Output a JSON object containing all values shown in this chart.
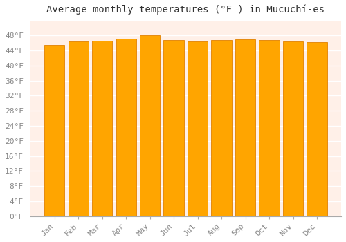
{
  "title": "Average monthly temperatures (°F ) in Mucuchí-es",
  "months": [
    "Jan",
    "Feb",
    "Mar",
    "Apr",
    "May",
    "Jun",
    "Jul",
    "Aug",
    "Sep",
    "Oct",
    "Nov",
    "Dec"
  ],
  "values": [
    45.5,
    46.4,
    46.6,
    47.1,
    48.0,
    46.8,
    46.4,
    46.8,
    47.0,
    46.8,
    46.4,
    46.2
  ],
  "bar_color": "#FFA500",
  "bar_edge_color": "#E08000",
  "background_color": "#FFFFFF",
  "plot_bg_color": "#FFF0E8",
  "grid_color": "#FFFFFF",
  "ylim": [
    0,
    52
  ],
  "ytick_labels": [
    "0°F",
    "4°F",
    "8°F",
    "12°F",
    "16°F",
    "20°F",
    "24°F",
    "28°F",
    "32°F",
    "36°F",
    "40°F",
    "44°F",
    "48°F"
  ],
  "ytick_values": [
    0,
    4,
    8,
    12,
    16,
    20,
    24,
    28,
    32,
    36,
    40,
    44,
    48
  ],
  "title_fontsize": 10,
  "tick_fontsize": 8,
  "font_family": "monospace",
  "tick_color": "#888888",
  "bar_width": 0.85
}
